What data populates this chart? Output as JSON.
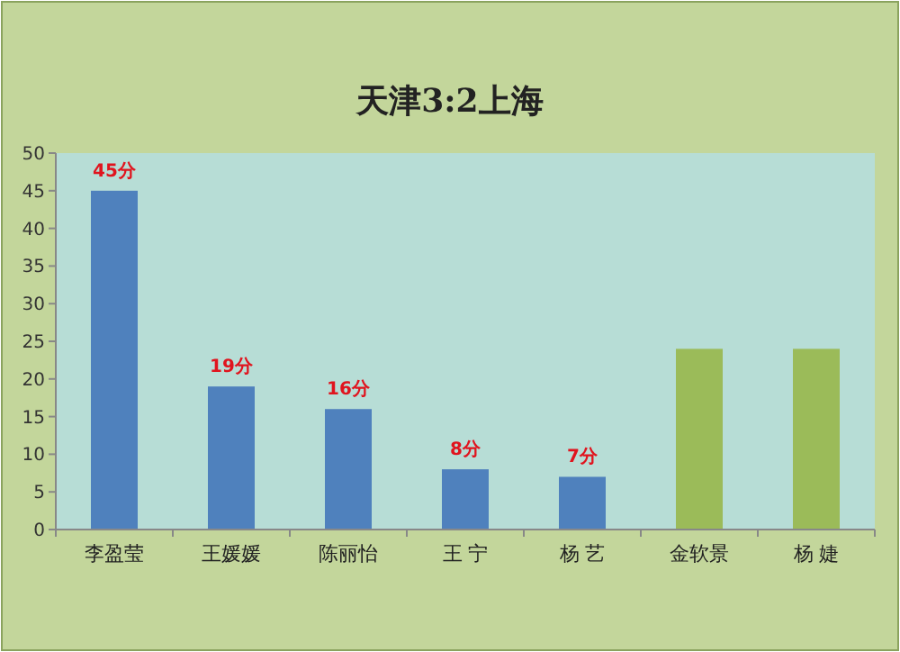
{
  "chart_data": {
    "type": "bar",
    "title": "天津3:2上海",
    "categories": [
      "李盈莹",
      "王媛媛",
      "陈丽怡",
      "王 宁",
      "杨 艺",
      "金软景",
      "杨 婕"
    ],
    "values": [
      45,
      19,
      16,
      8,
      7,
      24,
      24
    ],
    "colors": [
      "#4f81bd",
      "#4f81bd",
      "#4f81bd",
      "#4f81bd",
      "#4f81bd",
      "#9bbb59",
      "#9bbb59"
    ],
    "value_labels": [
      "45分",
      "19分",
      "16分",
      "8分",
      "7分",
      null,
      null
    ],
    "ylim": [
      0,
      50
    ],
    "yticks": [
      0,
      5,
      10,
      15,
      20,
      25,
      30,
      35,
      40,
      45,
      50
    ]
  }
}
